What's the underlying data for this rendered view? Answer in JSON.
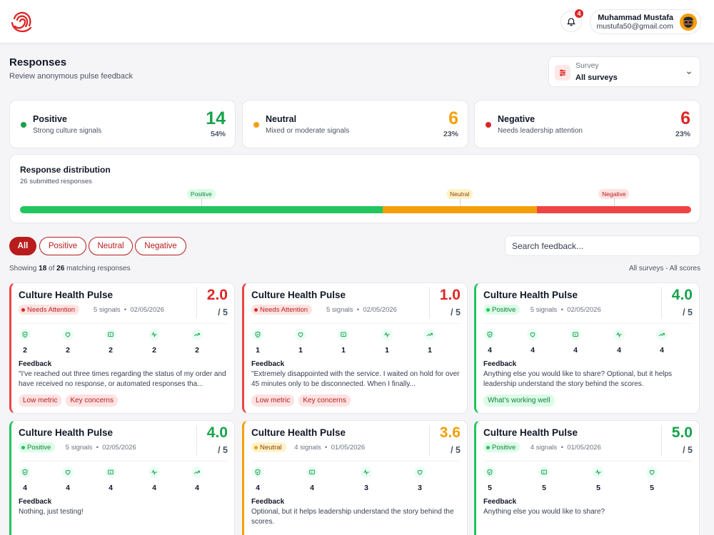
{
  "header": {
    "notification_count": "4",
    "user_name": "Muhammad Mustafa",
    "user_email": "mustufa50@gmail.com"
  },
  "page": {
    "title": "Responses",
    "subtitle": "Review anonymous pulse feedback"
  },
  "survey_select": {
    "label": "Survey",
    "value": "All surveys"
  },
  "stats": [
    {
      "label": "Positive",
      "sub": "Strong culture signals",
      "count": "14",
      "pct": "54%",
      "color": "#16a34a"
    },
    {
      "label": "Neutral",
      "sub": "Mixed or moderate signals",
      "count": "6",
      "pct": "23%",
      "color": "#f59e0b"
    },
    {
      "label": "Negative",
      "sub": "Needs leadership attention",
      "count": "6",
      "pct": "23%",
      "color": "#dc2626"
    }
  ],
  "distribution": {
    "title": "Response distribution",
    "subtitle": "26 submitted responses",
    "segments": [
      {
        "label": "Positive",
        "share": 0.54,
        "color": "#22c55e",
        "marker_pos": 0.27
      },
      {
        "label": "Neutral",
        "share": 0.23,
        "color": "#f59e0b",
        "marker_pos": 0.655
      },
      {
        "label": "Negative",
        "share": 0.23,
        "color": "#ef4444",
        "marker_pos": 0.885
      }
    ]
  },
  "filters": {
    "chips": [
      "All",
      "Positive",
      "Neutral",
      "Negative"
    ],
    "active": "All",
    "search_placeholder": "Search feedback..."
  },
  "summary": {
    "showing_prefix": "Showing",
    "shown": "18",
    "of_label": "of",
    "total": "26",
    "suffix": "matching responses",
    "scope": "All surveys - All scores"
  },
  "cards": [
    {
      "title": "Culture Health Pulse",
      "score": "2.0",
      "denominator": "/ 5",
      "status": "Needs Attention",
      "sentiment": "negative",
      "signals": "5 signals",
      "date": "02/05/2026",
      "metrics": [
        {
          "icon": "shield-icon",
          "value": "2"
        },
        {
          "icon": "heart-icon",
          "value": "2"
        },
        {
          "icon": "message-icon",
          "value": "2"
        },
        {
          "icon": "pulse-icon",
          "value": "2"
        },
        {
          "icon": "trend-icon",
          "value": "2"
        }
      ],
      "feedback_label": "Feedback",
      "feedback": "\"I've reached out three times regarding the status of my order and have received no response, or automated responses tha...",
      "tags": [
        "Low metric",
        "Key concerns"
      ]
    },
    {
      "title": "Culture Health Pulse",
      "score": "1.0",
      "denominator": "/ 5",
      "status": "Needs Attention",
      "sentiment": "negative",
      "signals": "5 signals",
      "date": "02/05/2026",
      "metrics": [
        {
          "icon": "shield-icon",
          "value": "1"
        },
        {
          "icon": "heart-icon",
          "value": "1"
        },
        {
          "icon": "message-icon",
          "value": "1"
        },
        {
          "icon": "pulse-icon",
          "value": "1"
        },
        {
          "icon": "trend-icon",
          "value": "1"
        }
      ],
      "feedback_label": "Feedback",
      "feedback": "\"Extremely disappointed with the service. I waited on hold for over 45 minutes only to be disconnected. When I finally...",
      "tags": [
        "Low metric",
        "Key concerns"
      ]
    },
    {
      "title": "Culture Health Pulse",
      "score": "4.0",
      "denominator": "/ 5",
      "status": "Positive",
      "sentiment": "positive",
      "signals": "5 signals",
      "date": "02/05/2026",
      "metrics": [
        {
          "icon": "shield-icon",
          "value": "4"
        },
        {
          "icon": "heart-icon",
          "value": "4"
        },
        {
          "icon": "message-icon",
          "value": "4"
        },
        {
          "icon": "pulse-icon",
          "value": "4"
        },
        {
          "icon": "trend-icon",
          "value": "4"
        }
      ],
      "feedback_label": "Feedback",
      "feedback": "Anything else you would like to share? Optional, but it helps leadership understand the story behind the scores.",
      "tags": [
        "What's working well"
      ]
    },
    {
      "title": "Culture Health Pulse",
      "score": "4.0",
      "denominator": "/ 5",
      "status": "Positive",
      "sentiment": "positive",
      "signals": "5 signals",
      "date": "02/05/2026",
      "metrics": [
        {
          "icon": "shield-icon",
          "value": "4"
        },
        {
          "icon": "heart-icon",
          "value": "4"
        },
        {
          "icon": "message-icon",
          "value": "4"
        },
        {
          "icon": "pulse-icon",
          "value": "4"
        },
        {
          "icon": "trend-icon",
          "value": "4"
        }
      ],
      "feedback_label": "Feedback",
      "feedback": "Nothing, just testing!",
      "tags": []
    },
    {
      "title": "Culture Health Pulse",
      "score": "3.6",
      "denominator": "/ 5",
      "status": "Neutral",
      "sentiment": "neutral",
      "signals": "4 signals",
      "date": "01/05/2026",
      "metrics": [
        {
          "icon": "shield-icon",
          "value": "4"
        },
        {
          "icon": "message-icon",
          "value": "4"
        },
        {
          "icon": "pulse-icon",
          "value": "3"
        },
        {
          "icon": "heart-icon",
          "value": "3"
        }
      ],
      "feedback_label": "Feedback",
      "feedback": "Optional, but it helps leadership understand the story behind the scores.",
      "tags": []
    },
    {
      "title": "Culture Health Pulse",
      "score": "5.0",
      "denominator": "/ 5",
      "status": "Positive",
      "sentiment": "positive",
      "signals": "4 signals",
      "date": "01/05/2026",
      "metrics": [
        {
          "icon": "shield-icon",
          "value": "5"
        },
        {
          "icon": "message-icon",
          "value": "5"
        },
        {
          "icon": "pulse-icon",
          "value": "5"
        },
        {
          "icon": "heart-icon",
          "value": "5"
        }
      ],
      "feedback_label": "Feedback",
      "feedback": "Anything else you would like to share?",
      "tags": []
    }
  ]
}
